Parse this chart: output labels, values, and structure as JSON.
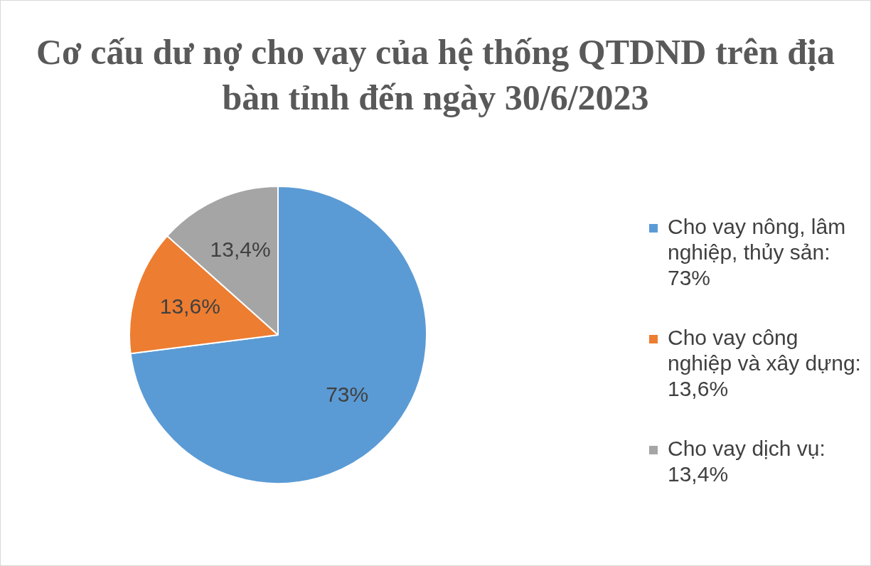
{
  "chart_data": {
    "type": "pie",
    "title": "Cơ cấu dư nợ cho vay của hệ thống QTDND trên địa bàn tỉnh đến ngày 30/6/2023",
    "categories": [
      "Cho vay nông, lâm nghiệp, thủy sản: 73%",
      "Cho vay công nghiệp và xây dựng: 13,6%",
      "Cho vay dịch vụ: 13,4%"
    ],
    "values": [
      73,
      13.6,
      13.4
    ],
    "colors": [
      "#5b9bd5",
      "#ed7d31",
      "#a5a5a5"
    ],
    "value_labels": [
      "73%",
      "13,6%",
      "13,4%"
    ],
    "legend": "right"
  }
}
